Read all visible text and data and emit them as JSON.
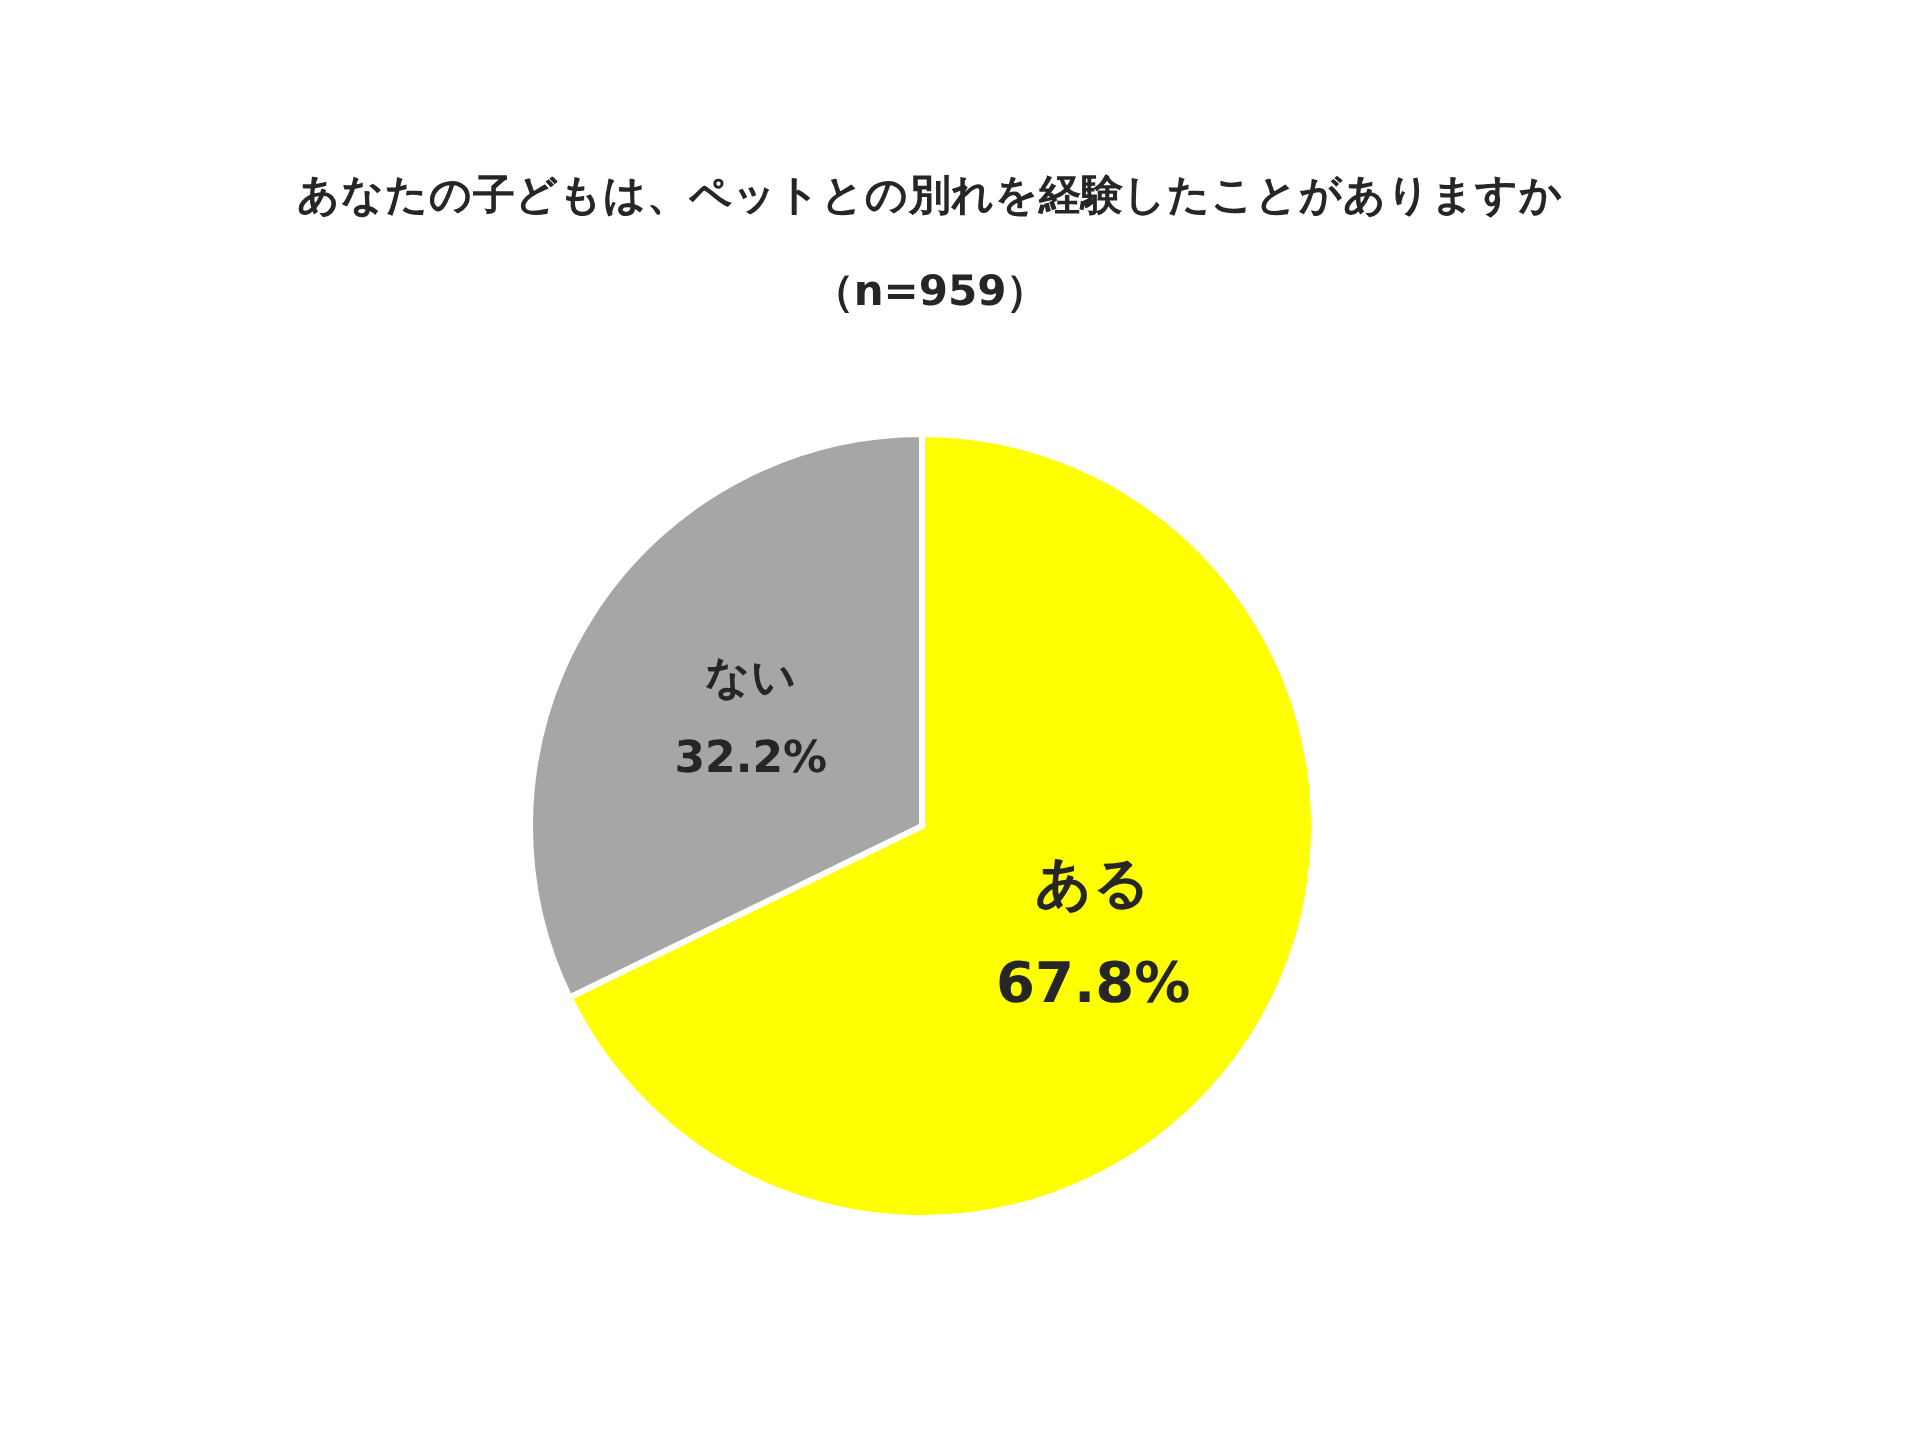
{
  "chart_data": {
    "type": "pie",
    "title": "あなたの子どもは、ペットとの別れを経験したことがありますか",
    "subtitle": "（n=959）",
    "categories": [
      "ある",
      "ない"
    ],
    "values": [
      67.8,
      32.2
    ],
    "colors": [
      "#ffff00",
      "#a6a6a6"
    ],
    "value_labels": [
      "67.8%",
      "32.2%"
    ],
    "legend": false
  }
}
